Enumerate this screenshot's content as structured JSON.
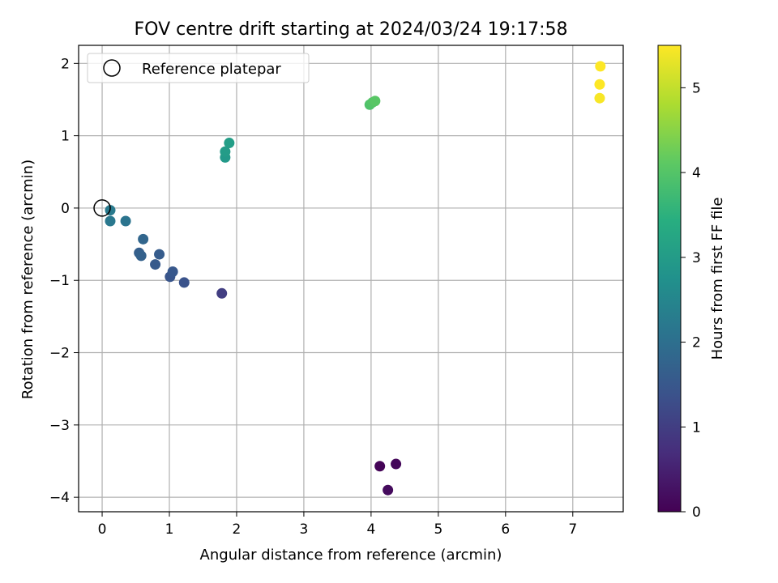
{
  "chart_data": {
    "type": "scatter",
    "title": "FOV centre drift starting at 2024/03/24 19:17:58",
    "xlabel": "Angular distance from reference (arcmin)",
    "ylabel": "Rotation from reference (arcmin)",
    "xlim": [
      -0.35,
      7.75
    ],
    "ylim": [
      -4.2,
      2.25
    ],
    "xticks": [
      0,
      1,
      2,
      3,
      4,
      5,
      6,
      7
    ],
    "yticks": [
      -4,
      -3,
      -2,
      -1,
      0,
      1,
      2
    ],
    "grid": true,
    "legend": {
      "placement": "upper-left",
      "entries": [
        "Reference platepar"
      ]
    },
    "colormap": "viridis",
    "colorbar": {
      "label": "Hours from first FF file",
      "min": 0,
      "max": 5.5,
      "ticks": [
        0,
        1,
        2,
        3,
        4,
        5
      ]
    },
    "reference_point": {
      "x": 0,
      "y": 0,
      "label": "Reference platepar"
    },
    "points": [
      {
        "x": 4.13,
        "y": -3.57,
        "hours": 0.05
      },
      {
        "x": 4.37,
        "y": -3.54,
        "hours": 0.1
      },
      {
        "x": 4.25,
        "y": -3.9,
        "hours": 0.15
      },
      {
        "x": 1.78,
        "y": -1.18,
        "hours": 1.0
      },
      {
        "x": 1.22,
        "y": -1.03,
        "hours": 1.4
      },
      {
        "x": 1.01,
        "y": -0.95,
        "hours": 1.45
      },
      {
        "x": 1.05,
        "y": -0.88,
        "hours": 1.5
      },
      {
        "x": 0.79,
        "y": -0.78,
        "hours": 1.55
      },
      {
        "x": 0.85,
        "y": -0.64,
        "hours": 1.6
      },
      {
        "x": 0.55,
        "y": -0.62,
        "hours": 1.65
      },
      {
        "x": 0.58,
        "y": -0.66,
        "hours": 1.7
      },
      {
        "x": 0.61,
        "y": -0.43,
        "hours": 1.8
      },
      {
        "x": 0.35,
        "y": -0.18,
        "hours": 2.1
      },
      {
        "x": 0.12,
        "y": -0.18,
        "hours": 2.2
      },
      {
        "x": 0.12,
        "y": -0.03,
        "hours": 2.25
      },
      {
        "x": 1.83,
        "y": 0.7,
        "hours": 2.95
      },
      {
        "x": 1.83,
        "y": 0.78,
        "hours": 3.0
      },
      {
        "x": 1.89,
        "y": 0.9,
        "hours": 3.05
      },
      {
        "x": 3.98,
        "y": 1.43,
        "hours": 3.95
      },
      {
        "x": 4.02,
        "y": 1.46,
        "hours": 4.0
      },
      {
        "x": 4.06,
        "y": 1.48,
        "hours": 4.05
      },
      {
        "x": 7.4,
        "y": 1.52,
        "hours": 5.45
      },
      {
        "x": 7.4,
        "y": 1.71,
        "hours": 5.5
      },
      {
        "x": 7.41,
        "y": 1.96,
        "hours": 5.55
      }
    ]
  }
}
